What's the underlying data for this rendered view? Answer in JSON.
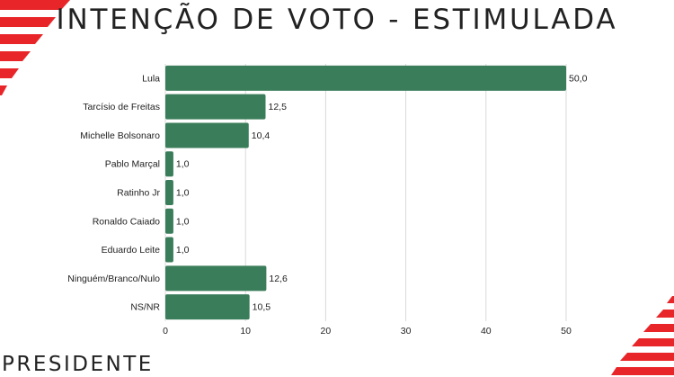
{
  "header": {
    "title": "INTENÇÃO DE VOTO - ESTIMULADA"
  },
  "footer": {
    "label": "PRESIDENTE"
  },
  "colors": {
    "bar": "#3a7d5a",
    "accent_stripes": "#e8262a"
  },
  "chart_data": {
    "type": "bar",
    "orientation": "horizontal",
    "categories": [
      "Lula",
      "Tarcísio de Freitas",
      "Michelle Bolsonaro",
      "Pablo Marçal",
      "Ratinho Jr",
      "Ronaldo Caiado",
      "Eduardo Leite",
      "Ninguém/Branco/Nulo",
      "NS/NR"
    ],
    "values": [
      50.0,
      12.5,
      10.4,
      1.0,
      1.0,
      1.0,
      1.0,
      12.6,
      10.5
    ],
    "value_labels": [
      "50,0",
      "12,5",
      "10,4",
      "1,0",
      "1,0",
      "1,0",
      "1,0",
      "12,6",
      "10,5"
    ],
    "xlim": [
      0,
      50
    ],
    "x_ticks": [
      0,
      10,
      20,
      30,
      40,
      50
    ],
    "grid": true,
    "title": "",
    "xlabel": "",
    "ylabel": ""
  }
}
